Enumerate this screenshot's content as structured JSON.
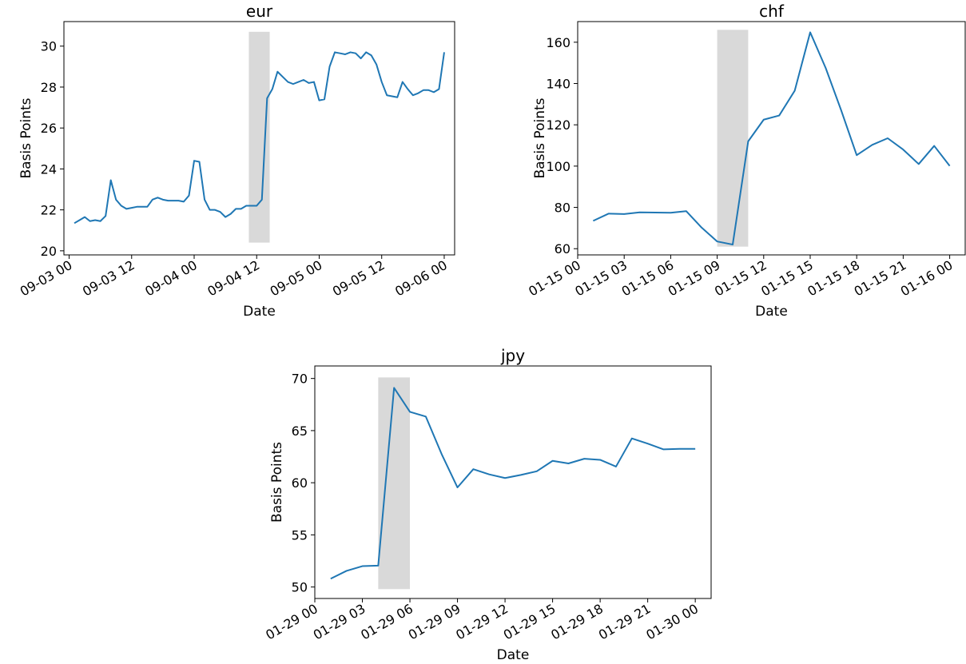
{
  "chart_data": [
    {
      "type": "line",
      "title": "eur",
      "xlabel": "Date",
      "ylabel": "Basis Points",
      "xlim": [
        "2019-09-02T23:00",
        "2019-09-06T02:00"
      ],
      "ylim": [
        19.8,
        31.2
      ],
      "x_ticks": [
        "2019-09-03T00:00",
        "2019-09-03T12:00",
        "2019-09-04T00:00",
        "2019-09-04T12:00",
        "2019-09-05T00:00",
        "2019-09-05T12:00",
        "2019-09-06T00:00"
      ],
      "x_tick_labels": [
        "09-03 00",
        "09-03 12",
        "09-04 00",
        "09-04 12",
        "09-05 00",
        "09-05 12",
        "09-06 00"
      ],
      "y_ticks": [
        20,
        22,
        24,
        26,
        28,
        30
      ],
      "grid": false,
      "shaded_span": {
        "x_start": "2019-09-04T10:30",
        "x_end": "2019-09-04T14:30",
        "y_bottom": 20.4,
        "y_top": 30.7
      },
      "series": [
        {
          "color": "#1f77b4",
          "x": [
            "2019-09-03T01:00",
            "2019-09-03T02:00",
            "2019-09-03T03:00",
            "2019-09-03T04:00",
            "2019-09-03T05:00",
            "2019-09-03T06:00",
            "2019-09-03T07:00",
            "2019-09-03T08:00",
            "2019-09-03T09:00",
            "2019-09-03T10:00",
            "2019-09-03T11:00",
            "2019-09-03T12:00",
            "2019-09-03T13:00",
            "2019-09-03T14:00",
            "2019-09-03T15:00",
            "2019-09-03T16:00",
            "2019-09-03T17:00",
            "2019-09-03T18:00",
            "2019-09-03T19:00",
            "2019-09-03T20:00",
            "2019-09-03T21:00",
            "2019-09-03T22:00",
            "2019-09-03T23:00",
            "2019-09-04T00:00",
            "2019-09-04T01:00",
            "2019-09-04T02:00",
            "2019-09-04T03:00",
            "2019-09-04T04:00",
            "2019-09-04T05:00",
            "2019-09-04T06:00",
            "2019-09-04T07:00",
            "2019-09-04T08:00",
            "2019-09-04T09:00",
            "2019-09-04T10:00",
            "2019-09-04T11:00",
            "2019-09-04T12:00",
            "2019-09-04T13:00",
            "2019-09-04T14:00",
            "2019-09-04T15:00",
            "2019-09-04T16:00",
            "2019-09-04T17:00",
            "2019-09-04T18:00",
            "2019-09-04T19:00",
            "2019-09-04T20:00",
            "2019-09-04T21:00",
            "2019-09-04T22:00",
            "2019-09-04T23:00",
            "2019-09-05T00:00",
            "2019-09-05T01:00",
            "2019-09-05T02:00",
            "2019-09-05T03:00",
            "2019-09-05T04:00",
            "2019-09-05T05:00",
            "2019-09-05T06:00",
            "2019-09-05T07:00",
            "2019-09-05T08:00",
            "2019-09-05T09:00",
            "2019-09-05T10:00",
            "2019-09-05T11:00",
            "2019-09-05T12:00",
            "2019-09-05T13:00",
            "2019-09-05T14:00",
            "2019-09-05T15:00",
            "2019-09-05T16:00",
            "2019-09-05T17:00",
            "2019-09-05T18:00",
            "2019-09-05T19:00",
            "2019-09-05T20:00",
            "2019-09-05T21:00",
            "2019-09-05T22:00",
            "2019-09-05T23:00",
            "2019-09-06T00:00"
          ],
          "y": [
            21.35,
            21.5,
            21.65,
            21.45,
            21.5,
            21.45,
            21.7,
            23.45,
            22.5,
            22.2,
            22.05,
            22.1,
            22.15,
            22.15,
            22.15,
            22.5,
            22.6,
            22.5,
            22.45,
            22.45,
            22.45,
            22.4,
            22.7,
            24.4,
            24.35,
            22.5,
            22.0,
            22.0,
            21.9,
            21.65,
            21.8,
            22.05,
            22.05,
            22.2,
            22.2,
            22.2,
            22.5,
            27.45,
            27.9,
            28.75,
            28.5,
            28.25,
            28.15,
            28.25,
            28.35,
            28.2,
            28.25,
            27.35,
            27.4,
            29.0,
            29.7,
            29.65,
            29.6,
            29.7,
            29.65,
            29.4,
            29.7,
            29.55,
            29.1,
            28.25,
            27.6,
            27.55,
            27.5,
            28.25,
            27.9,
            27.6,
            27.7,
            27.85,
            27.85,
            27.75,
            27.9,
            29.7
          ]
        }
      ]
    },
    {
      "type": "line",
      "title": "chf",
      "xlabel": "Date",
      "ylabel": "Basis Points",
      "xlim": [
        "2020-01-15T00:00",
        "2020-01-16T01:00"
      ],
      "ylim": [
        57.0,
        170.0
      ],
      "x_ticks": [
        "2020-01-15T00:00",
        "2020-01-15T03:00",
        "2020-01-15T06:00",
        "2020-01-15T09:00",
        "2020-01-15T12:00",
        "2020-01-15T15:00",
        "2020-01-15T18:00",
        "2020-01-15T21:00",
        "2020-01-16T00:00"
      ],
      "x_tick_labels": [
        "01-15 00",
        "01-15 03",
        "01-15 06",
        "01-15 09",
        "01-15 12",
        "01-15 15",
        "01-15 18",
        "01-15 21",
        "01-16 00"
      ],
      "y_ticks": [
        60,
        80,
        100,
        120,
        140,
        160
      ],
      "grid": false,
      "shaded_span": {
        "x_start": "2020-01-15T09:00",
        "x_end": "2020-01-15T11:00",
        "y_bottom": 61,
        "y_top": 166
      },
      "series": [
        {
          "color": "#1f77b4",
          "x": [
            "2020-01-15T01:00",
            "2020-01-15T02:00",
            "2020-01-15T03:00",
            "2020-01-15T04:00",
            "2020-01-15T05:00",
            "2020-01-15T06:00",
            "2020-01-15T07:00",
            "2020-01-15T08:00",
            "2020-01-15T09:00",
            "2020-01-15T10:00",
            "2020-01-15T11:00",
            "2020-01-15T12:00",
            "2020-01-15T13:00",
            "2020-01-15T14:00",
            "2020-01-15T15:00",
            "2020-01-15T16:00",
            "2020-01-15T17:00",
            "2020-01-15T18:00",
            "2020-01-15T19:00",
            "2020-01-15T20:00",
            "2020-01-15T21:00",
            "2020-01-15T22:00",
            "2020-01-15T23:00",
            "2020-01-16T00:00"
          ],
          "y": [
            73.5,
            77.0,
            76.8,
            77.6,
            77.5,
            77.4,
            78.2,
            70.2,
            63.5,
            62.0,
            112.0,
            122.5,
            124.5,
            136.5,
            164.8,
            147.5,
            127.0,
            105.3,
            110.3,
            113.5,
            108.0,
            101.0,
            109.8,
            100.1
          ]
        }
      ]
    },
    {
      "type": "line",
      "title": "jpy",
      "xlabel": "Date",
      "ylabel": "Basis Points",
      "xlim": [
        "2020-01-29T00:00",
        "2020-01-30T01:00"
      ],
      "ylim": [
        48.9,
        71.2
      ],
      "x_ticks": [
        "2020-01-29T00:00",
        "2020-01-29T03:00",
        "2020-01-29T06:00",
        "2020-01-29T09:00",
        "2020-01-29T12:00",
        "2020-01-29T15:00",
        "2020-01-29T18:00",
        "2020-01-29T21:00",
        "2020-01-30T00:00"
      ],
      "x_tick_labels": [
        "01-29 00",
        "01-29 03",
        "01-29 06",
        "01-29 09",
        "01-29 12",
        "01-29 15",
        "01-29 18",
        "01-29 21",
        "01-30 00"
      ],
      "y_ticks": [
        50,
        55,
        60,
        65,
        70
      ],
      "grid": false,
      "shaded_span": {
        "x_start": "2020-01-29T04:00",
        "x_end": "2020-01-29T06:00",
        "y_bottom": 49.8,
        "y_top": 70.1
      },
      "series": [
        {
          "color": "#1f77b4",
          "x": [
            "2020-01-29T01:00",
            "2020-01-29T02:00",
            "2020-01-29T03:00",
            "2020-01-29T04:00",
            "2020-01-29T05:00",
            "2020-01-29T06:00",
            "2020-01-29T07:00",
            "2020-01-29T08:00",
            "2020-01-29T09:00",
            "2020-01-29T10:00",
            "2020-01-29T11:00",
            "2020-01-29T12:00",
            "2020-01-29T13:00",
            "2020-01-29T14:00",
            "2020-01-29T15:00",
            "2020-01-29T16:00",
            "2020-01-29T17:00",
            "2020-01-29T18:00",
            "2020-01-29T19:00",
            "2020-01-29T20:00",
            "2020-01-29T21:00",
            "2020-01-29T22:00",
            "2020-01-29T23:00",
            "2020-01-30T00:00"
          ],
          "y": [
            50.8,
            51.55,
            52.0,
            52.05,
            69.1,
            66.8,
            66.35,
            62.75,
            59.55,
            61.3,
            60.8,
            60.45,
            60.75,
            61.1,
            62.1,
            61.85,
            62.3,
            62.2,
            61.55,
            64.25,
            63.75,
            63.2,
            63.25,
            63.25
          ]
        }
      ]
    }
  ]
}
